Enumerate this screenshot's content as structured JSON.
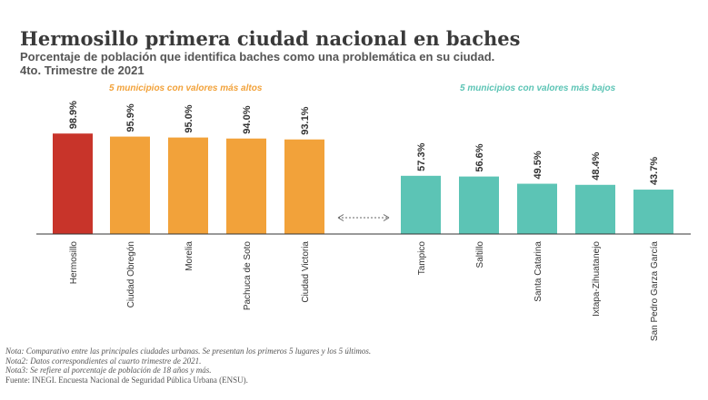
{
  "header": {
    "title": "Hermosillo primera ciudad nacional en baches",
    "subtitle_line1": "Porcentaje de población que identifica baches como una problemática en su ciudad.",
    "subtitle_line2": "4to. Trimestre de 2021"
  },
  "groups": {
    "high_label": "5 municipios con valores más altos",
    "low_label": "5 municipios con valores más bajos",
    "high_color": "#f2a23a",
    "low_color": "#5cc4b5",
    "top_color": "#c8342a"
  },
  "chart_data": {
    "type": "bar",
    "title": "Hermosillo primera ciudad nacional en baches",
    "ylabel": "",
    "ylim": [
      0,
      100
    ],
    "categories": [
      "Hermosillo",
      "Ciudad Obregón",
      "Morelia",
      "Pachuca de Soto",
      "Ciudad Victoria",
      "Tampico",
      "Saltillo",
      "Santa Catarina",
      "Ixtapa-Zihuatanejo",
      "San Pedro Garza García"
    ],
    "values": [
      98.9,
      95.9,
      95.0,
      94.0,
      93.1,
      57.3,
      56.6,
      49.5,
      48.4,
      43.7
    ],
    "labels": [
      "98.9%",
      "95.9%",
      "95.0%",
      "94.0%",
      "93.1%",
      "57.3%",
      "56.6%",
      "49.5%",
      "48.4%",
      "43.7%"
    ],
    "bar_colors": [
      "#c8342a",
      "#f2a23a",
      "#f2a23a",
      "#f2a23a",
      "#f2a23a",
      "#5cc4b5",
      "#5cc4b5",
      "#5cc4b5",
      "#5cc4b5",
      "#5cc4b5"
    ]
  },
  "notes": {
    "n1": "Nota: Comparativo entre las principales ciudades urbanas. Se presentan los primeros 5 lugares y los 5 últimos.",
    "n2": "Nota2: Datos correspondientes al cuarto trimestre de 2021.",
    "n3": "Nota3: Se refiere al porcentaje de población de 18 años y más.",
    "source": "Fuente: INEGI. Encuesta Nacional de Seguridad Pública Urbana (ENSU)."
  }
}
